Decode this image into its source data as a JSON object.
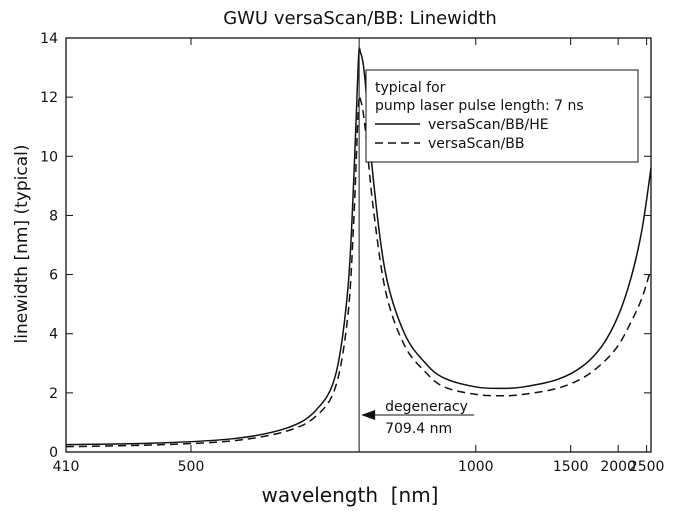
{
  "chart_data": {
    "type": "line",
    "title": "GWU versaScan/BB: Linewidth",
    "xlabel": "wavelength  [nm]",
    "ylabel": "linewidth [nm] (typical)",
    "x_scale": "reciprocal",
    "xlim": [
      410,
      2600
    ],
    "ylim": [
      0,
      14
    ],
    "x_ticks": [
      410,
      500,
      1000,
      1500,
      2000,
      2500
    ],
    "x_tick_labels": [
      "410",
      "500",
      "1000",
      "1500",
      "2000",
      "2500"
    ],
    "y_ticks": [
      0,
      2,
      4,
      6,
      8,
      10,
      12,
      14
    ],
    "y_tick_labels": [
      "0",
      "2",
      "4",
      "6",
      "8",
      "10",
      "12",
      "14"
    ],
    "grid": false,
    "legend": {
      "position": "top-right",
      "heading_lines": [
        "typical for",
        "pump laser pulse length: 7 ns"
      ],
      "entries": [
        {
          "label": "versaScan/BB/HE",
          "style": "solid"
        },
        {
          "label": "versaScan/BB",
          "style": "dashed"
        }
      ]
    },
    "annotation": {
      "x": 709.4,
      "line1": "degeneracy",
      "line2": "709.4 nm"
    },
    "series": [
      {
        "name": "versaScan/BB/HE",
        "style": "solid",
        "x": [
          410,
          470,
          540,
          600,
          640,
          670,
          690,
          700,
          708,
          712,
          720,
          735,
          760,
          800,
          850,
          900,
          1000,
          1100,
          1200,
          1400,
          1600,
          1800,
          2000,
          2200,
          2400,
          2600
        ],
        "y": [
          0.25,
          0.3,
          0.45,
          0.8,
          1.4,
          2.6,
          5.5,
          9.2,
          13.2,
          13.5,
          12.6,
          9.3,
          6.0,
          4.0,
          3.0,
          2.5,
          2.2,
          2.15,
          2.2,
          2.45,
          2.9,
          3.6,
          4.6,
          5.9,
          7.5,
          9.6
        ]
      },
      {
        "name": "versaScan/BB",
        "style": "dashed",
        "x": [
          410,
          470,
          540,
          600,
          640,
          670,
          690,
          700,
          708,
          712,
          720,
          735,
          760,
          800,
          850,
          900,
          1000,
          1100,
          1200,
          1400,
          1600,
          1800,
          2000,
          2200,
          2400,
          2600
        ],
        "y": [
          0.18,
          0.24,
          0.38,
          0.7,
          1.2,
          2.2,
          4.6,
          7.8,
          11.6,
          11.9,
          11.0,
          8.3,
          5.4,
          3.6,
          2.7,
          2.2,
          1.95,
          1.9,
          1.95,
          2.15,
          2.5,
          3.0,
          3.6,
          4.4,
          5.2,
          6.2
        ]
      }
    ]
  }
}
